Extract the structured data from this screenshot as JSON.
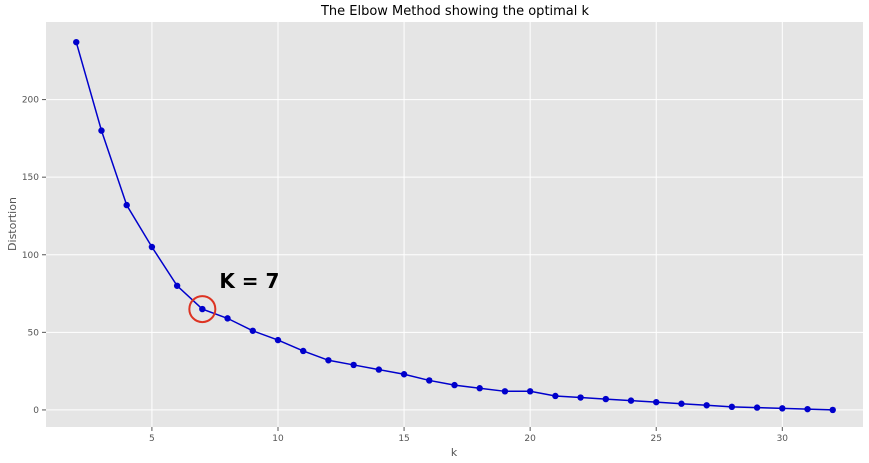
{
  "chart_data": {
    "type": "line",
    "title": "The Elbow Method showing the optimal k",
    "xlabel": "k",
    "ylabel": "Distortion",
    "xlim": [
      0.8,
      33.2
    ],
    "ylim": [
      -11,
      250
    ],
    "xticks": [
      5,
      10,
      15,
      20,
      25,
      30
    ],
    "yticks": [
      0,
      50,
      100,
      150,
      200
    ],
    "grid": true,
    "background": "#e5e5e5",
    "grid_color": "#ffffff",
    "series": [
      {
        "color": "#0000cc",
        "marker": "circle",
        "x": [
          2,
          3,
          4,
          5,
          6,
          7,
          8,
          9,
          10,
          11,
          12,
          13,
          14,
          15,
          16,
          17,
          18,
          19,
          20,
          21,
          22,
          23,
          24,
          25,
          26,
          27,
          28,
          29,
          30,
          31,
          32
        ],
        "y": [
          237,
          180,
          132,
          105,
          80,
          65,
          59,
          51,
          45,
          38,
          32,
          29,
          26,
          23,
          19,
          16,
          14,
          12,
          12,
          9,
          8,
          7,
          6,
          5,
          4,
          3,
          2,
          1.5,
          1,
          0.5,
          0
        ]
      }
    ],
    "annotations": [
      {
        "text": "K = 7",
        "x": 7,
        "y": 65,
        "circle_color": "#dd3322"
      }
    ]
  }
}
